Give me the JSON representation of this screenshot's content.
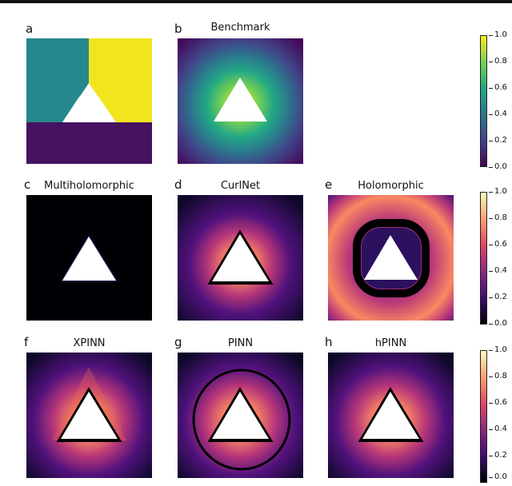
{
  "panels": [
    {
      "letter": "a",
      "title": "",
      "map": "segmentation"
    },
    {
      "letter": "b",
      "title": "Benchmark",
      "map": "viridis"
    },
    {
      "letter": "c",
      "title": "Multiholomorphic",
      "map": "magma"
    },
    {
      "letter": "d",
      "title": "CurlNet",
      "map": "magma"
    },
    {
      "letter": "e",
      "title": "Holomorphic",
      "map": "magma"
    },
    {
      "letter": "f",
      "title": "XPINN",
      "map": "magma"
    },
    {
      "letter": "g",
      "title": "PINN",
      "map": "magma"
    },
    {
      "letter": "h",
      "title": "hPINN",
      "map": "magma"
    }
  ],
  "colorbars": [
    {
      "map": "viridis",
      "ticks": [
        "1.0",
        "0.8",
        "0.6",
        "0.4",
        "0.2",
        "0.0"
      ]
    },
    {
      "map": "magma",
      "ticks": [
        "1.0",
        "0.8",
        "0.6",
        "0.4",
        "0.2",
        "0.0"
      ]
    },
    {
      "map": "magma",
      "ticks": [
        "1.0",
        "0.8",
        "0.6",
        "0.4",
        "0.2",
        "0.0"
      ]
    }
  ],
  "colors": {
    "segment_teal": "#26878c",
    "segment_yellow": "#f1e51d",
    "segment_purple": "#46115f",
    "hole": "#ffffff"
  }
}
